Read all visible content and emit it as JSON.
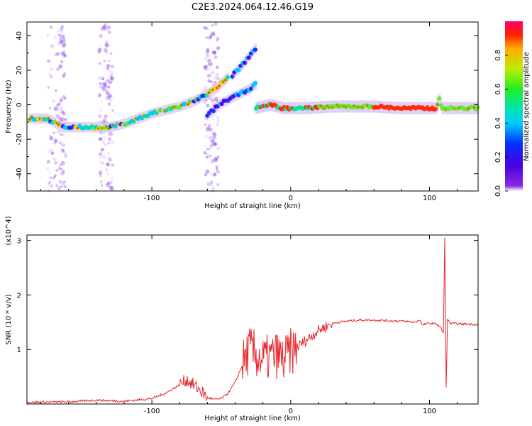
{
  "title": "C2E3.2024.064.12.46.G19",
  "chart_data": [
    {
      "type": "heatmap",
      "xlabel": "Height of straight line (km)",
      "ylabel": "Frequency (Hz)",
      "xlim": [
        -190,
        135
      ],
      "ylim": [
        -50,
        48
      ],
      "xticks": [
        -100,
        0,
        100
      ],
      "yticks": [
        -40,
        -20,
        0,
        20,
        40
      ],
      "colorbar": {
        "label": "Normalized spectral amplitude",
        "range": [
          0,
          1
        ],
        "ticks": [
          "0.0",
          "0.2",
          "0.4",
          "0.6",
          "0.8"
        ],
        "colormap": "rainbow (violet to red)"
      },
      "ridges": [
        {
          "name": "main",
          "points": [
            [
              -188,
              -8
            ],
            [
              -175,
              -8
            ],
            [
              -165,
              -13
            ],
            [
              -150,
              -13
            ],
            [
              -140,
              -13
            ],
            [
              -130,
              -13
            ],
            [
              -120,
              -11
            ],
            [
              -110,
              -8
            ],
            [
              -100,
              -5
            ],
            [
              -90,
              -3
            ],
            [
              -80,
              -1
            ],
            [
              -70,
              2
            ],
            [
              -60,
              6
            ],
            [
              -52,
              11
            ],
            [
              -45,
              16
            ]
          ]
        },
        {
          "name": "secondary",
          "points": [
            [
              -60,
              -6
            ],
            [
              -50,
              1
            ],
            [
              -40,
              5
            ],
            [
              -30,
              9
            ],
            [
              -25,
              12
            ]
          ]
        },
        {
          "name": "upper",
          "points": [
            [
              -42,
              17
            ],
            [
              -35,
              23
            ],
            [
              -28,
              30
            ],
            [
              -25,
              33
            ]
          ]
        },
        {
          "name": "flat",
          "points": [
            [
              -25,
              -2
            ],
            [
              -15,
              0
            ],
            [
              -5,
              -2
            ],
            [
              10,
              -2
            ],
            [
              30,
              -1
            ],
            [
              60,
              -1
            ],
            [
              80,
              -2
            ],
            [
              100,
              -2
            ],
            [
              105,
              -2
            ],
            [
              107,
              3
            ],
            [
              109,
              -2
            ],
            [
              135,
              -2
            ]
          ]
        }
      ]
    },
    {
      "type": "line",
      "xlabel": "Height of straight line (km)",
      "ylabel": "SNR (10 * v/v)",
      "y_multiplier": "(x10^4)",
      "xlim": [
        -190,
        135
      ],
      "ylim": [
        0,
        3.1
      ],
      "xticks": [
        -100,
        0,
        100
      ],
      "yticks": [
        1,
        2,
        3
      ],
      "series": [
        {
          "color": "#e8262a",
          "x": [
            -190,
            -160,
            -140,
            -120,
            -100,
            -90,
            -80,
            -75,
            -70,
            -65,
            -60,
            -55,
            -50,
            -45,
            -40,
            -35,
            -30,
            -25,
            -20,
            -15,
            -10,
            -5,
            0,
            5,
            10,
            15,
            20,
            25,
            30,
            40,
            50,
            60,
            70,
            80,
            90,
            93,
            95,
            100,
            105,
            108,
            110,
            111,
            112,
            113,
            115,
            120,
            135
          ],
          "y": [
            0.03,
            0.04,
            0.07,
            0.05,
            0.1,
            0.2,
            0.35,
            0.45,
            0.35,
            0.25,
            0.12,
            0.08,
            0.1,
            0.2,
            0.4,
            0.7,
            1.0,
            0.9,
            0.8,
            0.85,
            0.9,
            0.8,
            0.95,
            1.05,
            1.15,
            1.25,
            1.35,
            1.42,
            1.48,
            1.52,
            1.54,
            1.54,
            1.53,
            1.52,
            1.5,
            1.55,
            1.45,
            1.48,
            1.47,
            1.4,
            1.3,
            3.05,
            0.3,
            1.55,
            1.48,
            1.47,
            1.46
          ]
        }
      ]
    }
  ]
}
